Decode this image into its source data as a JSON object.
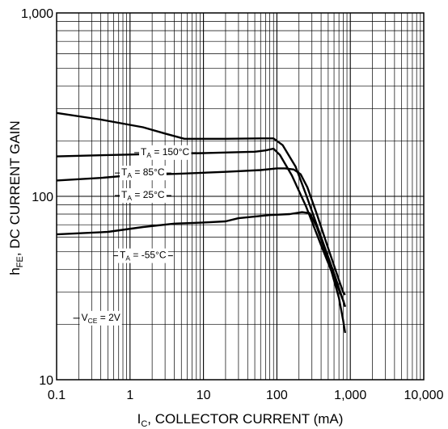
{
  "chart_data": {
    "type": "line",
    "title": "",
    "xlabel_main": "I",
    "xlabel_sub": "C",
    "xlabel_rest": ", COLLECTOR CURRENT (mA)",
    "ylabel_main": "h",
    "ylabel_sub": "FE",
    "ylabel_rest": ", DC CURRENT GAIN",
    "x_scale": "log",
    "y_scale": "log",
    "xlim": [
      0.1,
      10000
    ],
    "ylim": [
      10,
      1000
    ],
    "x_ticks": [
      {
        "value": 0.1,
        "label": "0.1"
      },
      {
        "value": 1,
        "label": "1"
      },
      {
        "value": 10,
        "label": "10"
      },
      {
        "value": 100,
        "label": "100"
      },
      {
        "value": 1000,
        "label": "1,000"
      },
      {
        "value": 10000,
        "label": "10,000"
      }
    ],
    "y_ticks": [
      {
        "value": 10,
        "label": "10"
      },
      {
        "value": 100,
        "label": "100"
      },
      {
        "value": 1000,
        "label": "1,000"
      }
    ],
    "grid": true,
    "annotation": {
      "main": "V",
      "sub": "CE",
      "rest": " = 2V"
    },
    "series": [
      {
        "label_main": "T",
        "label_sub": "A",
        "label_rest": " = 150°C",
        "points": [
          [
            0.1,
            285
          ],
          [
            0.4,
            262
          ],
          [
            1.5,
            238
          ],
          [
            3,
            220
          ],
          [
            5.5,
            206
          ],
          [
            20,
            206
          ],
          [
            60,
            207
          ],
          [
            90,
            207
          ],
          [
            120,
            190
          ],
          [
            180,
            145
          ],
          [
            250,
            102
          ],
          [
            400,
            60
          ],
          [
            600,
            38
          ],
          [
            800,
            27
          ],
          [
            850,
            25
          ]
        ]
      },
      {
        "label_main": "T",
        "label_sub": "A",
        "label_rest": " = 85°C",
        "points": [
          [
            0.1,
            165
          ],
          [
            0.5,
            168
          ],
          [
            2,
            170
          ],
          [
            10,
            172
          ],
          [
            50,
            175
          ],
          [
            70,
            178
          ],
          [
            90,
            182
          ],
          [
            110,
            168
          ],
          [
            160,
            130
          ],
          [
            250,
            88
          ],
          [
            400,
            54
          ],
          [
            600,
            36
          ],
          [
            800,
            27
          ],
          [
            850,
            25
          ]
        ]
      },
      {
        "label_main": "T",
        "label_sub": "A",
        "label_rest": " = 25°C",
        "points": [
          [
            0.1,
            122
          ],
          [
            0.4,
            126
          ],
          [
            1,
            130
          ],
          [
            5,
            133
          ],
          [
            20,
            136
          ],
          [
            60,
            139
          ],
          [
            100,
            142
          ],
          [
            130,
            142
          ],
          [
            170,
            140
          ],
          [
            210,
            132
          ],
          [
            260,
            112
          ],
          [
            350,
            80
          ],
          [
            500,
            52
          ],
          [
            700,
            35
          ],
          [
            800,
            30
          ],
          [
            850,
            29
          ]
        ]
      },
      {
        "label_main": "T",
        "label_sub": "A",
        "label_rest": " = -55°C",
        "points": [
          [
            0.1,
            62
          ],
          [
            0.5,
            64
          ],
          [
            1.5,
            68
          ],
          [
            4,
            71
          ],
          [
            10,
            72
          ],
          [
            20,
            73
          ],
          [
            30,
            76
          ],
          [
            80,
            79
          ],
          [
            150,
            80
          ],
          [
            220,
            82
          ],
          [
            280,
            81
          ],
          [
            350,
            68
          ],
          [
            500,
            45
          ],
          [
            700,
            28
          ],
          [
            800,
            21
          ],
          [
            850,
            18
          ]
        ]
      }
    ]
  }
}
